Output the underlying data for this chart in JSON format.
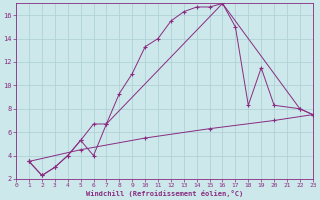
{
  "xlabel": "Windchill (Refroidissement éolien,°C)",
  "bg_color": "#cce8eb",
  "line_color": "#892b80",
  "grid_color": "#aacfd4",
  "xmin": 0,
  "xmax": 23,
  "ymin": 2,
  "ymax": 17,
  "yticks": [
    2,
    4,
    6,
    8,
    10,
    12,
    14,
    16
  ],
  "xticks": [
    0,
    1,
    2,
    3,
    4,
    5,
    6,
    7,
    8,
    9,
    10,
    11,
    12,
    13,
    14,
    15,
    16,
    17,
    18,
    19,
    20,
    21,
    22,
    23
  ],
  "curve1": [
    [
      1,
      3.5
    ],
    [
      2,
      2.3
    ],
    [
      3,
      3.0
    ],
    [
      4,
      4.0
    ],
    [
      5,
      5.3
    ],
    [
      6,
      4.0
    ],
    [
      7,
      6.7
    ],
    [
      8,
      9.3
    ],
    [
      9,
      11.0
    ],
    [
      10,
      13.3
    ],
    [
      11,
      14.0
    ],
    [
      12,
      15.5
    ],
    [
      13,
      16.3
    ],
    [
      14,
      16.7
    ],
    [
      15,
      16.7
    ],
    [
      16,
      17.0
    ],
    [
      17,
      15.0
    ],
    [
      18,
      8.3
    ],
    [
      19,
      11.5
    ],
    [
      20,
      8.3
    ],
    [
      22,
      8.0
    ],
    [
      23,
      7.5
    ]
  ],
  "curve2": [
    [
      1,
      3.5
    ],
    [
      2,
      2.3
    ],
    [
      3,
      3.0
    ],
    [
      4,
      4.0
    ],
    [
      5,
      5.3
    ],
    [
      6,
      6.7
    ],
    [
      7,
      6.7
    ],
    [
      16,
      17.0
    ],
    [
      22,
      8.0
    ],
    [
      23,
      7.5
    ]
  ],
  "curve3": [
    [
      1,
      3.5
    ],
    [
      5,
      4.5
    ],
    [
      10,
      5.5
    ],
    [
      15,
      6.3
    ],
    [
      20,
      7.0
    ],
    [
      23,
      7.5
    ]
  ]
}
